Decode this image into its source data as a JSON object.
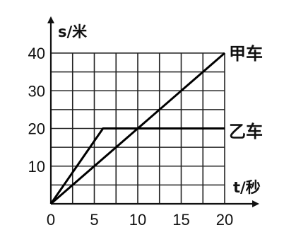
{
  "chart_data": {
    "type": "line",
    "xlabel": "t/秒",
    "ylabel": "s/米",
    "xlim": [
      0,
      20
    ],
    "ylim": [
      0,
      40
    ],
    "x_ticks": [
      0,
      5,
      10,
      15,
      20
    ],
    "x_tick_labels": [
      "0",
      "5",
      "10",
      "15",
      "20"
    ],
    "y_ticks": [
      10,
      20,
      30,
      40
    ],
    "y_tick_labels": [
      "10",
      "20",
      "30",
      "40"
    ],
    "grid": true,
    "series": [
      {
        "name": "甲车",
        "x": [
          0,
          20
        ],
        "y": [
          0,
          40
        ]
      },
      {
        "name": "乙车",
        "x": [
          0,
          6,
          20
        ],
        "y": [
          0,
          20,
          20
        ]
      }
    ]
  }
}
